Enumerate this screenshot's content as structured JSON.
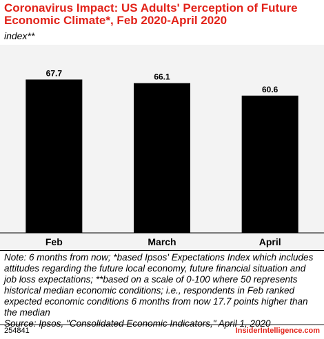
{
  "header": {
    "title": "Coronavirus Impact: US Adults' Perception of Future Economic Climate*, Feb 2020-April 2020",
    "subtitle": "index**"
  },
  "chart_data": {
    "type": "bar",
    "categories": [
      "Feb",
      "March",
      "April"
    ],
    "values": [
      67.7,
      66.1,
      60.6
    ],
    "data_labels": [
      "67.7",
      "66.1",
      "60.6"
    ],
    "ylim": [
      0,
      80
    ],
    "grid": false,
    "bar_color": "#000000",
    "background_color": "#f3f3f3"
  },
  "footnote": {
    "note": "Note: 6 months from now; *based Ipsos' Expectations Index which includes attitudes regarding the future local economy, future financial situation and job loss expectations; **based on a scale of 0-100 where 50 represents historical median economic conditions; i.e., respondents in Feb ranked expected economic conditions 6 months from now 17.7 points higher than the median",
    "source": "Source: Ipsos, \"Consolidated Economic Indicators,\" April 1, 2020"
  },
  "footer": {
    "id": "254841",
    "brand": "InsiderIntelligence.com"
  },
  "colors": {
    "accent": "#e2231a"
  }
}
